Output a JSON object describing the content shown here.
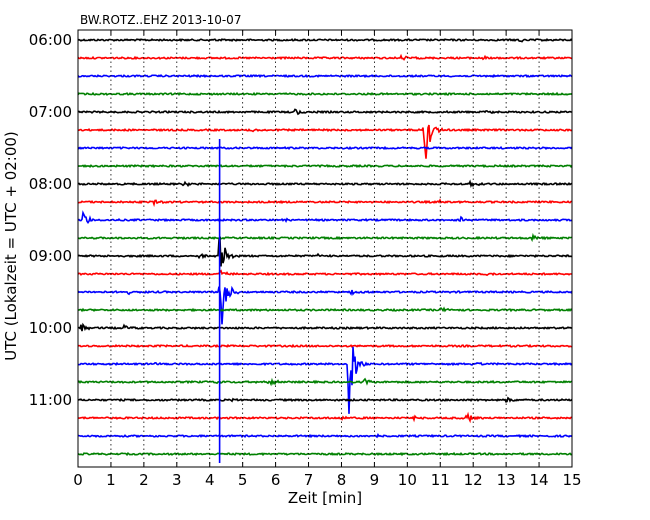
{
  "chart_data": {
    "type": "line",
    "title": "BW.ROTZ..EHZ 2013-10-07",
    "xlabel": "Zeit  [min]",
    "ylabel": "UTC (Lokalzeit = UTC + 02:00)",
    "xlim": [
      0,
      15
    ],
    "x_ticks": [
      "0",
      "1",
      "2",
      "3",
      "4",
      "5",
      "6",
      "7",
      "8",
      "9",
      "10",
      "11",
      "12",
      "13",
      "14",
      "15"
    ],
    "y_ticks": [
      {
        "label": "06:00",
        "trace": 0
      },
      {
        "label": "07:00",
        "trace": 4
      },
      {
        "label": "08:00",
        "trace": 8
      },
      {
        "label": "09:00",
        "trace": 12
      },
      {
        "label": "10:00",
        "trace": 16
      },
      {
        "label": "11:00",
        "trace": 20
      }
    ],
    "grid": "vertical-dotted",
    "trace_minutes": 15,
    "trace_colors": [
      "#000000",
      "#ff0000",
      "#0000ff",
      "#008000"
    ],
    "traces": [
      {
        "start": "06:00",
        "events": [
          {
            "t": 13.4,
            "a": 3
          },
          {
            "t": 4.0,
            "a": 2
          }
        ]
      },
      {
        "start": "06:15",
        "events": [
          {
            "t": 9.8,
            "a": 3
          },
          {
            "t": 12.3,
            "a": 2
          }
        ]
      },
      {
        "start": "06:30",
        "events": []
      },
      {
        "start": "06:45",
        "events": []
      },
      {
        "start": "07:00",
        "events": [
          {
            "t": 6.6,
            "a": 4
          },
          {
            "t": 12.4,
            "a": 2
          }
        ]
      },
      {
        "start": "07:15",
        "events": [
          {
            "t": 10.5,
            "a": 48
          },
          {
            "t": 5.3,
            "a": 2
          }
        ]
      },
      {
        "start": "07:30",
        "events": []
      },
      {
        "start": "07:45",
        "events": []
      },
      {
        "start": "08:00",
        "events": [
          {
            "t": 11.9,
            "a": 3
          },
          {
            "t": 3.2,
            "a": 2
          }
        ]
      },
      {
        "start": "08:15",
        "events": [
          {
            "t": 2.3,
            "a": 3
          },
          {
            "t": 11.0,
            "a": 2
          }
        ]
      },
      {
        "start": "08:30",
        "events": [
          {
            "t": 0.15,
            "a": 9
          },
          {
            "t": 11.6,
            "a": 4
          },
          {
            "t": 6.2,
            "a": 2
          }
        ]
      },
      {
        "start": "08:45",
        "events": [
          {
            "t": 13.8,
            "a": 3
          }
        ]
      },
      {
        "start": "09:00",
        "events": [
          {
            "t": 4.3,
            "a": 30
          },
          {
            "t": 3.7,
            "a": 3
          },
          {
            "t": 7.3,
            "a": 2
          }
        ]
      },
      {
        "start": "09:15",
        "events": [
          {
            "t": 4.3,
            "a": 5
          },
          {
            "t": 12.4,
            "a": 2
          }
        ]
      },
      {
        "start": "09:30",
        "events": [
          {
            "t": 4.3,
            "a": 55
          },
          {
            "t": 1.5,
            "a": 2
          },
          {
            "t": 8.3,
            "a": 2
          }
        ]
      },
      {
        "start": "09:45",
        "events": [
          {
            "t": 11.0,
            "a": 3
          }
        ]
      },
      {
        "start": "10:00",
        "events": [
          {
            "t": 0.1,
            "a": 5
          },
          {
            "t": 1.4,
            "a": 3
          },
          {
            "t": 13.7,
            "a": 2
          }
        ]
      },
      {
        "start": "10:15",
        "events": []
      },
      {
        "start": "10:30",
        "events": [
          {
            "t": 8.2,
            "a": 65
          },
          {
            "t": 2.3,
            "a": 2
          },
          {
            "t": 12.0,
            "a": 3
          }
        ]
      },
      {
        "start": "10:45",
        "events": [
          {
            "t": 5.8,
            "a": 4
          },
          {
            "t": 8.7,
            "a": 3
          },
          {
            "t": 4.2,
            "a": 2
          }
        ]
      },
      {
        "start": "11:00",
        "events": [
          {
            "t": 13.0,
            "a": 3
          },
          {
            "t": 4.7,
            "a": 2
          }
        ]
      },
      {
        "start": "11:15",
        "events": [
          {
            "t": 11.8,
            "a": 6
          },
          {
            "t": 10.2,
            "a": 3
          },
          {
            "t": 8.0,
            "a": 2
          }
        ]
      },
      {
        "start": "11:30",
        "events": [
          {
            "t": 9.0,
            "a": 2
          }
        ]
      },
      {
        "start": "11:45",
        "events": []
      }
    ],
    "spikes": [
      {
        "t": 4.3,
        "from_trace": 5.5,
        "to_trace": 23.5
      }
    ]
  }
}
